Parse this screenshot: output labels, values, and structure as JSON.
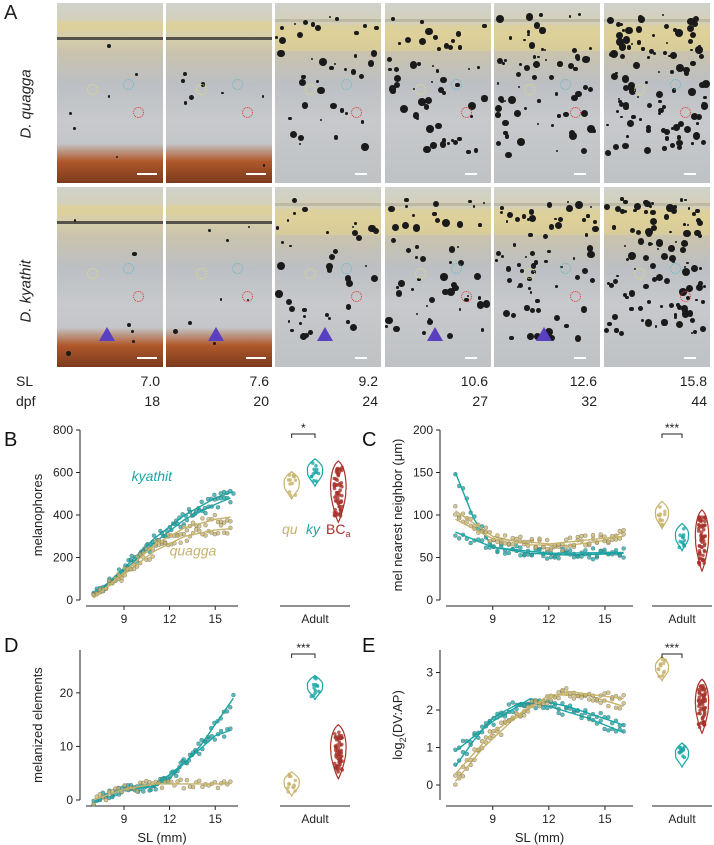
{
  "panel_a": {
    "letter": "A",
    "species": [
      "D. quagga",
      "D. kyathit"
    ],
    "sl_label": "SL",
    "dpf_label": "dpf",
    "sl_values": [
      "7.0",
      "7.6",
      "9.2",
      "10.6",
      "12.6",
      "15.8"
    ],
    "dpf_values": [
      "18",
      "20",
      "24",
      "27",
      "32",
      "44"
    ]
  },
  "colors": {
    "quagga": "#c8b36a",
    "kyathit": "#1aa6a6",
    "bc": "#a8322a"
  },
  "chart_data": [
    {
      "panel": "B",
      "type": "scatter",
      "ylabel": "melanophores",
      "xlabel": "",
      "xticks": [
        "9",
        "12",
        "15"
      ],
      "yticks": [
        "0",
        "200",
        "400",
        "600",
        "800"
      ],
      "ylim": [
        0,
        800
      ],
      "xlim": [
        6.5,
        16.5
      ],
      "series_labels": [
        "kyathit",
        "quagga"
      ],
      "series": [
        {
          "key": "kyathit",
          "curves": [
            [
              [
                7,
                20
              ],
              [
                9,
                150
              ],
              [
                11,
                290
              ],
              [
                13,
                400
              ],
              [
                15,
                480
              ],
              [
                16.2,
                510
              ]
            ],
            [
              [
                7,
                15
              ],
              [
                9,
                140
              ],
              [
                11,
                270
              ],
              [
                13,
                380
              ],
              [
                15,
                450
              ],
              [
                16,
                480
              ]
            ]
          ]
        },
        {
          "key": "quagga",
          "curves": [
            [
              [
                7,
                10
              ],
              [
                9,
                120
              ],
              [
                11,
                230
              ],
              [
                13,
                300
              ],
              [
                15,
                330
              ],
              [
                16,
                335
              ]
            ],
            [
              [
                7,
                10
              ],
              [
                9,
                130
              ],
              [
                11,
                260
              ],
              [
                13,
                340
              ],
              [
                15,
                380
              ],
              [
                16,
                390
              ]
            ]
          ]
        }
      ],
      "adult_label": "Adult",
      "violin_labels": [
        "qu",
        "ky",
        "BC"
      ],
      "bc_subscript": "a",
      "adult_means": [
        540,
        600,
        510
      ],
      "significance": "*"
    },
    {
      "panel": "C",
      "type": "scatter",
      "ylabel": "mel nearest neighbor (μm)",
      "xlabel": "",
      "xticks": [
        "9",
        "12",
        "15"
      ],
      "yticks": [
        "0",
        "50",
        "100",
        "150",
        "200"
      ],
      "ylim": [
        0,
        200
      ],
      "xlim": [
        6.5,
        16.5
      ],
      "series": [
        {
          "key": "kyathit",
          "curves": [
            [
              [
                7,
                150
              ],
              [
                8,
                95
              ],
              [
                9,
                62
              ],
              [
                11,
                55
              ],
              [
                13,
                53
              ],
              [
                15,
                54
              ],
              [
                16,
                55
              ]
            ],
            [
              [
                7,
                80
              ],
              [
                9,
                62
              ],
              [
                12,
                55
              ],
              [
                16,
                56
              ]
            ]
          ]
        },
        {
          "key": "quagga",
          "curves": [
            [
              [
                7,
                105
              ],
              [
                8,
                90
              ],
              [
                9,
                75
              ],
              [
                11,
                65
              ],
              [
                13,
                64
              ],
              [
                15,
                70
              ],
              [
                16,
                80
              ]
            ],
            [
              [
                7,
                95
              ],
              [
                9,
                72
              ],
              [
                12,
                66
              ],
              [
                16,
                75
              ]
            ]
          ]
        }
      ],
      "adult_label": "Adult",
      "adult_means": [
        100,
        74,
        70
      ],
      "significance": "***"
    },
    {
      "panel": "D",
      "type": "scatter",
      "ylabel": "melanized elements",
      "xlabel": "SL (mm)",
      "xticks": [
        "9",
        "12",
        "15"
      ],
      "yticks": [
        "0",
        "10",
        "20"
      ],
      "ylim": [
        0,
        28
      ],
      "xlim": [
        6.5,
        16.5
      ],
      "series": [
        {
          "key": "kyathit",
          "curves": [
            [
              [
                7,
                0
              ],
              [
                8,
                1
              ],
              [
                9,
                2
              ],
              [
                11,
                2.5
              ],
              [
                12,
                4
              ],
              [
                14,
                10
              ],
              [
                16.2,
                19
              ]
            ],
            [
              [
                7,
                0
              ],
              [
                9,
                2
              ],
              [
                11,
                2.5
              ],
              [
                13,
                7
              ],
              [
                15,
                12
              ],
              [
                16,
                13
              ]
            ]
          ]
        },
        {
          "key": "quagga",
          "curves": [
            [
              [
                7,
                0
              ],
              [
                8,
                1
              ],
              [
                9,
                2
              ],
              [
                11,
                3
              ],
              [
                13,
                3
              ],
              [
                16,
                3
              ]
            ]
          ]
        }
      ],
      "adult_label": "Adult",
      "adult_means": [
        3,
        21,
        9
      ],
      "significance": "***"
    },
    {
      "panel": "E",
      "type": "scatter",
      "ylabel": "log2(DV:AP)",
      "xlabel": "SL (mm)",
      "xticks": [
        "9",
        "12",
        "15"
      ],
      "yticks": [
        "0",
        "1",
        "2",
        "3"
      ],
      "ylim": [
        -0.4,
        3.6
      ],
      "xlim": [
        6.5,
        16.5
      ],
      "series": [
        {
          "key": "kyathit",
          "curves": [
            [
              [
                7,
                0.5
              ],
              [
                8,
                1.2
              ],
              [
                9,
                1.8
              ],
              [
                10.5,
                2.2
              ],
              [
                12,
                2.1
              ],
              [
                14,
                1.8
              ],
              [
                16,
                1.4
              ]
            ],
            [
              [
                7,
                0.9
              ],
              [
                9,
                1.7
              ],
              [
                11,
                2.3
              ],
              [
                13,
                2.1
              ],
              [
                16,
                1.6
              ]
            ]
          ]
        },
        {
          "key": "quagga",
          "curves": [
            [
              [
                7,
                0.1
              ],
              [
                8.5,
                1.0
              ],
              [
                10,
                1.7
              ],
              [
                12,
                2.4
              ],
              [
                14,
                2.4
              ],
              [
                16,
                2.1
              ]
            ],
            [
              [
                7,
                0.3
              ],
              [
                9,
                1.4
              ],
              [
                11,
                2.1
              ],
              [
                13,
                2.5
              ],
              [
                16,
                2.3
              ]
            ]
          ]
        }
      ],
      "adult_label": "Adult",
      "adult_means": [
        3.1,
        0.8,
        2.1
      ],
      "significance": "***"
    }
  ]
}
